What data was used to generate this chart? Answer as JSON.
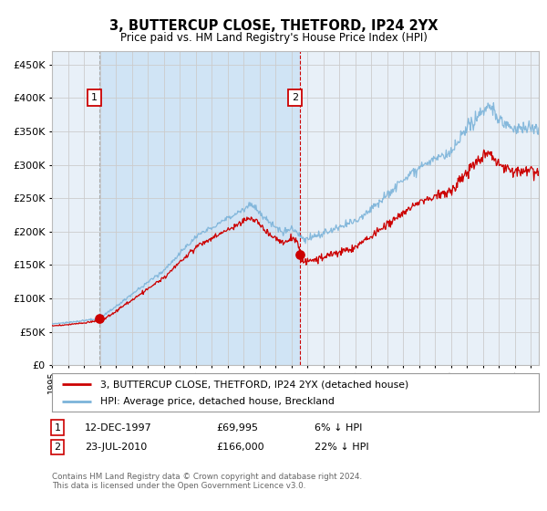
{
  "title": "3, BUTTERCUP CLOSE, THETFORD, IP24 2YX",
  "subtitle": "Price paid vs. HM Land Registry's House Price Index (HPI)",
  "legend_line1": "3, BUTTERCUP CLOSE, THETFORD, IP24 2YX (detached house)",
  "legend_line2": "HPI: Average price, detached house, Breckland",
  "annotation1_date": "12-DEC-1997",
  "annotation1_price": "£69,995",
  "annotation1_hpi": "6% ↓ HPI",
  "annotation2_date": "23-JUL-2010",
  "annotation2_price": "£166,000",
  "annotation2_hpi": "22% ↓ HPI",
  "footer": "Contains HM Land Registry data © Crown copyright and database right 2024.\nThis data is licensed under the Open Government Licence v3.0.",
  "plot_bg_color": "#e8f0f8",
  "shaded_bg_color": "#d0e4f5",
  "grid_color": "#cccccc",
  "hpi_line_color": "#7bb3d9",
  "price_line_color": "#cc0000",
  "marker_color": "#cc0000",
  "dashed_line_color": "#cc0000",
  "dashed_line1_color": "#aaaaaa",
  "annotation_box_color": "#cc0000",
  "ylim": [
    0,
    470000
  ],
  "yticks": [
    0,
    50000,
    100000,
    150000,
    200000,
    250000,
    300000,
    350000,
    400000,
    450000
  ],
  "sale1_x": 1997.958,
  "sale1_y": 69995,
  "sale2_x": 2010.542,
  "sale2_y": 166000,
  "xmin": 1995,
  "xmax": 2025.5
}
